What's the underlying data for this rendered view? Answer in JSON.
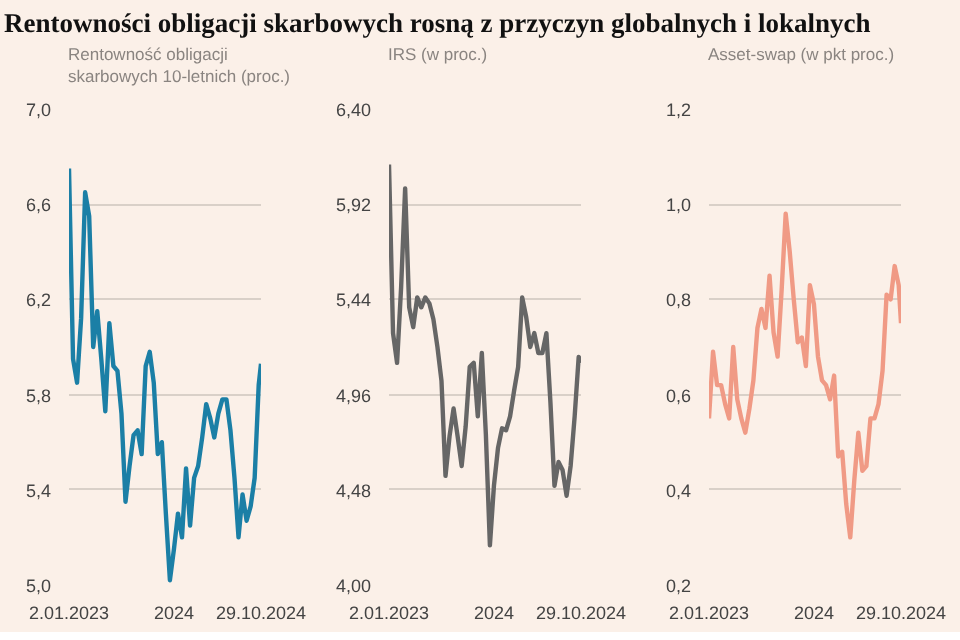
{
  "chart_data": [
    {
      "type": "line",
      "title": "Rentowności obligacji skarbowych rosną z przyczyn globalnych i lokalnych",
      "subtitle": "Rentowność obligacji skarbowych 10-letnich (proc.)",
      "x": [
        "2023-01-02",
        "2023-01-16",
        "2023-01-30",
        "2023-02-13",
        "2023-02-27",
        "2023-03-13",
        "2023-03-27",
        "2023-04-10",
        "2023-04-24",
        "2023-05-08",
        "2023-05-22",
        "2023-06-05",
        "2023-06-19",
        "2023-07-03",
        "2023-07-17",
        "2023-07-31",
        "2023-08-14",
        "2023-08-28",
        "2023-09-11",
        "2023-09-25",
        "2023-10-09",
        "2023-10-23",
        "2023-11-06",
        "2023-11-20",
        "2023-12-04",
        "2023-12-18",
        "2024-01-01",
        "2024-01-15",
        "2024-01-29",
        "2024-02-12",
        "2024-02-26",
        "2024-03-11",
        "2024-03-25",
        "2024-04-08",
        "2024-04-22",
        "2024-05-06",
        "2024-05-20",
        "2024-06-03",
        "2024-06-17",
        "2024-07-01",
        "2024-07-15",
        "2024-07-29",
        "2024-08-12",
        "2024-08-26",
        "2024-09-09",
        "2024-09-23",
        "2024-10-07",
        "2024-10-21",
        "2024-10-29"
      ],
      "series": [
        {
          "color": "#1b7fa6",
          "values": [
            6.75,
            5.95,
            5.85,
            6.12,
            6.65,
            6.55,
            6.0,
            6.15,
            5.95,
            5.73,
            6.1,
            5.92,
            5.9,
            5.72,
            5.35,
            5.5,
            5.63,
            5.65,
            5.55,
            5.92,
            5.98,
            5.85,
            5.55,
            5.6,
            5.3,
            5.02,
            5.15,
            5.3,
            5.2,
            5.49,
            5.25,
            5.45,
            5.5,
            5.62,
            5.76,
            5.7,
            5.62,
            5.72,
            5.78,
            5.78,
            5.65,
            5.45,
            5.2,
            5.38,
            5.27,
            5.33,
            5.45,
            5.84,
            5.93
          ]
        }
      ],
      "xlim": [
        "2023-01-02",
        "2024-10-29"
      ],
      "xticks": [
        {
          "value": "2023-01-02",
          "label": "2.01.2023"
        },
        {
          "value": "2024-01-01",
          "label": "2024"
        },
        {
          "value": "2024-10-29",
          "label": "29.10.2024"
        }
      ],
      "ylim": [
        5.0,
        7.0
      ],
      "yticks": [
        {
          "value": 5.0,
          "label": "5,0"
        },
        {
          "value": 5.4,
          "label": "5,4"
        },
        {
          "value": 5.8,
          "label": "5,8"
        },
        {
          "value": 6.2,
          "label": "6,2"
        },
        {
          "value": 6.6,
          "label": "6,6"
        },
        {
          "value": 7.0,
          "label": "7,0"
        }
      ],
      "grid": "y"
    },
    {
      "type": "line",
      "subtitle": "IRS (w proc.)",
      "x": [
        "2023-01-02",
        "2023-01-16",
        "2023-01-30",
        "2023-02-13",
        "2023-02-27",
        "2023-03-13",
        "2023-03-27",
        "2023-04-10",
        "2023-04-24",
        "2023-05-08",
        "2023-05-22",
        "2023-06-05",
        "2023-06-19",
        "2023-07-03",
        "2023-07-17",
        "2023-07-31",
        "2023-08-14",
        "2023-08-28",
        "2023-09-11",
        "2023-09-25",
        "2023-10-09",
        "2023-10-23",
        "2023-11-06",
        "2023-11-20",
        "2023-12-04",
        "2023-12-18",
        "2024-01-01",
        "2024-01-15",
        "2024-01-29",
        "2024-02-12",
        "2024-02-26",
        "2024-03-11",
        "2024-03-25",
        "2024-04-08",
        "2024-04-22",
        "2024-05-06",
        "2024-05-20",
        "2024-06-03",
        "2024-06-17",
        "2024-07-01",
        "2024-07-15",
        "2024-07-29",
        "2024-08-12",
        "2024-08-26",
        "2024-09-09",
        "2024-09-23",
        "2024-10-07",
        "2024-10-21",
        "2024-10-29"
      ],
      "series": [
        {
          "color": "#666666",
          "values": [
            6.12,
            5.27,
            5.12,
            5.5,
            6.0,
            5.4,
            5.3,
            5.45,
            5.4,
            5.45,
            5.42,
            5.34,
            5.2,
            5.03,
            4.55,
            4.75,
            4.89,
            4.75,
            4.6,
            4.8,
            5.1,
            5.12,
            4.85,
            5.17,
            4.76,
            4.2,
            4.5,
            4.69,
            4.79,
            4.78,
            4.85,
            4.98,
            5.1,
            5.45,
            5.35,
            5.2,
            5.27,
            5.17,
            5.17,
            5.27,
            4.92,
            4.5,
            4.62,
            4.58,
            4.45,
            4.6,
            4.85,
            5.15,
            5.12
          ]
        }
      ],
      "xlim": [
        "2023-01-02",
        "2024-10-29"
      ],
      "xticks": [
        {
          "value": "2023-01-02",
          "label": "2.01.2023"
        },
        {
          "value": "2024-01-01",
          "label": "2024"
        },
        {
          "value": "2024-10-29",
          "label": "29.10.2024"
        }
      ],
      "ylim": [
        4.0,
        6.4
      ],
      "yticks": [
        {
          "value": 4.0,
          "label": "4,00"
        },
        {
          "value": 4.48,
          "label": "4,48"
        },
        {
          "value": 4.96,
          "label": "4,96"
        },
        {
          "value": 5.44,
          "label": "5,44"
        },
        {
          "value": 5.92,
          "label": "5,92"
        },
        {
          "value": 6.4,
          "label": "6,40"
        }
      ],
      "grid": "y"
    },
    {
      "type": "line",
      "subtitle": "Asset-swap (w pkt proc.)",
      "x": [
        "2023-01-02",
        "2023-01-16",
        "2023-01-30",
        "2023-02-13",
        "2023-02-27",
        "2023-03-13",
        "2023-03-27",
        "2023-04-10",
        "2023-04-24",
        "2023-05-08",
        "2023-05-22",
        "2023-06-05",
        "2023-06-19",
        "2023-07-03",
        "2023-07-17",
        "2023-07-31",
        "2023-08-14",
        "2023-08-28",
        "2023-09-11",
        "2023-09-25",
        "2023-10-09",
        "2023-10-23",
        "2023-11-06",
        "2023-11-20",
        "2023-12-04",
        "2023-12-18",
        "2024-01-01",
        "2024-01-15",
        "2024-01-29",
        "2024-02-12",
        "2024-02-26",
        "2024-03-11",
        "2024-03-25",
        "2024-04-08",
        "2024-04-22",
        "2024-05-06",
        "2024-05-20",
        "2024-06-03",
        "2024-06-17",
        "2024-07-01",
        "2024-07-15",
        "2024-07-29",
        "2024-08-12",
        "2024-08-26",
        "2024-09-09",
        "2024-09-23",
        "2024-10-07",
        "2024-10-21",
        "2024-10-29"
      ],
      "series": [
        {
          "color": "#f09a85",
          "values": [
            0.55,
            0.69,
            0.62,
            0.62,
            0.58,
            0.55,
            0.7,
            0.59,
            0.55,
            0.52,
            0.57,
            0.63,
            0.74,
            0.78,
            0.74,
            0.85,
            0.73,
            0.68,
            0.82,
            0.98,
            0.9,
            0.8,
            0.71,
            0.72,
            0.66,
            0.83,
            0.79,
            0.68,
            0.63,
            0.62,
            0.59,
            0.64,
            0.47,
            0.48,
            0.37,
            0.3,
            0.42,
            0.52,
            0.44,
            0.45,
            0.55,
            0.55,
            0.58,
            0.65,
            0.81,
            0.8,
            0.87,
            0.83,
            0.75
          ]
        }
      ],
      "xlim": [
        "2023-01-02",
        "2024-10-29"
      ],
      "xticks": [
        {
          "value": "2023-01-02",
          "label": "2.01.2023"
        },
        {
          "value": "2024-01-01",
          "label": "2024"
        },
        {
          "value": "2024-10-29",
          "label": "29.10.2024"
        }
      ],
      "ylim": [
        0.2,
        1.2
      ],
      "yticks": [
        {
          "value": 0.2,
          "label": "0,2"
        },
        {
          "value": 0.4,
          "label": "0,4"
        },
        {
          "value": 0.6,
          "label": "0,6"
        },
        {
          "value": 0.8,
          "label": "0,8"
        },
        {
          "value": 1.0,
          "label": "1,0"
        },
        {
          "value": 1.2,
          "label": "1,2"
        }
      ],
      "grid": "y"
    }
  ]
}
